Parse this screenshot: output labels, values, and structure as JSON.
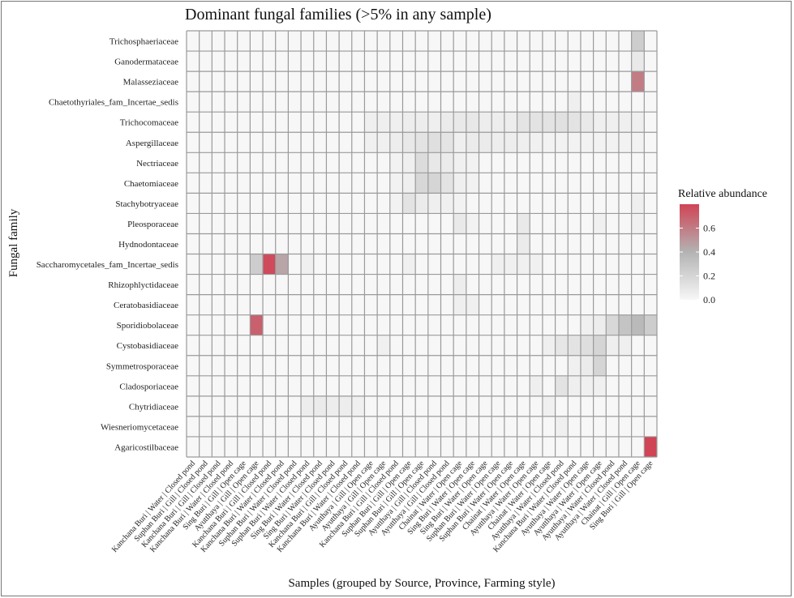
{
  "chart_data": {
    "type": "heatmap",
    "title": "Dominant fungal families (>5% in any sample)",
    "xlabel": "Samples (grouped by Source, Province, Farming style)",
    "ylabel": "Fungal family",
    "legend": {
      "title": "Relative abundance",
      "ticks": [
        "0.0",
        "0.2",
        "0.4",
        "0.6"
      ],
      "range": [
        0,
        0.8
      ],
      "colors": [
        "#f7f7f7",
        "#b3b3b3",
        "#d04455"
      ]
    },
    "x": [
      "Kanchana Buri | Water | Closed pond",
      "Suphan Buri | Gill | Closed pond",
      "Kanchana Buri | Gill | Closed pond",
      "Kanchana Buri | Water | Closed pond",
      "Sing Buri | Gill | Open cage",
      "Ayutthaya | Gill | Open cage",
      "Kanchana Buri | Gill | Closed pond",
      "Kanchana Buri | Water | Closed pond",
      "Suphan Buri | Water | Closed pond",
      "Suphan Buri | Water | Closed pond",
      "Sing Buri | Water | Closed pond",
      "Sing Buri | Water | Closed pond",
      "Kanchana Buri | Gill | Closed pond",
      "Kanchana Buri | Water | Closed pond",
      "Ayutthaya | Gill | Open cage",
      "Ayutthaya | Gill | Open cage",
      "Kanchana Buri | Gill | Closed pond",
      "Suphan Buri | Gill | Open cage",
      "Suphan Buri | Gill | Open cage",
      "Ayutthaya | Gill | Closed pond",
      "Ayutthaya | Gill | Closed pond",
      "Chainat | Water | Open cage",
      "Sing Buri | Water | Open cage",
      "Sing Buri | Water | Open cage",
      "Suphan Buri | Water | Open cage",
      "Suphan Buri | Water | Open cage",
      "Chainat | Water | Open cage",
      "Ayutthaya | Water | Open cage",
      "Chainat | Water | Open cage",
      "Ayutthaya | Water | Closed pond",
      "Kanchana Buri | Water | Closed pond",
      "Ayutthaya | Water | Open cage",
      "Ayutthaya | Water | Open cage",
      "Ayutthaya | Water | Closed pond",
      "Ayutthaya | Water | Closed pond",
      "Chainat | Gill | Open cage",
      "Sing Buri | Gill | Open cage"
    ],
    "y": [
      "Trichosphaeriaceae",
      "Ganodermataceae",
      "Malasseziaceae",
      "Chaetothyriales_fam_Incertae_sedis",
      "Trichocomaceae",
      "Aspergillaceae",
      "Nectriaceae",
      "Chaetomiaceae",
      "Stachybotryaceae",
      "Pleosporaceae",
      "Hydnodontaceae",
      "Saccharomycetales_fam_Incertae_sedis",
      "Rhizophlyctidaceae",
      "Ceratobasidiaceae",
      "Sporidiobolaceae",
      "Cystobasidiaceae",
      "Symmetrosporaceae",
      "Cladosporiaceae",
      "Chytridiaceae",
      "Wiesneriomycetaceae",
      "Agaricostilbaceae"
    ],
    "values": [
      [
        0,
        0,
        0,
        0,
        0,
        0,
        0,
        0,
        0,
        0,
        0,
        0,
        0,
        0,
        0,
        0,
        0,
        0,
        0,
        0,
        0,
        0,
        0,
        0,
        0,
        0,
        0,
        0,
        0,
        0,
        0,
        0,
        0,
        0,
        0,
        0.25,
        0
      ],
      [
        0,
        0,
        0,
        0,
        0,
        0,
        0,
        0,
        0,
        0,
        0,
        0,
        0,
        0,
        0,
        0,
        0,
        0,
        0,
        0,
        0,
        0,
        0,
        0,
        0,
        0,
        0,
        0,
        0,
        0,
        0,
        0,
        0,
        0,
        0,
        0.08,
        0
      ],
      [
        0,
        0,
        0,
        0,
        0,
        0,
        0,
        0,
        0,
        0,
        0,
        0,
        0,
        0,
        0,
        0,
        0,
        0,
        0,
        0,
        0,
        0,
        0,
        0,
        0,
        0,
        0,
        0,
        0,
        0,
        0,
        0,
        0,
        0,
        0,
        0.6,
        0
      ],
      [
        0,
        0,
        0,
        0,
        0,
        0,
        0,
        0,
        0,
        0,
        0,
        0,
        0,
        0,
        0,
        0,
        0,
        0,
        0,
        0,
        0,
        0,
        0,
        0,
        0,
        0,
        0,
        0,
        0,
        0,
        0.05,
        0,
        0,
        0,
        0,
        0,
        0
      ],
      [
        0,
        0,
        0,
        0,
        0,
        0,
        0,
        0,
        0,
        0,
        0,
        0,
        0,
        0,
        0.05,
        0.05,
        0.05,
        0.06,
        0.06,
        0.05,
        0.07,
        0.08,
        0.09,
        0.06,
        0.06,
        0.06,
        0.11,
        0.12,
        0.12,
        0.13,
        0.12,
        0.08,
        0.05,
        0.05,
        0.05,
        0.05,
        0
      ],
      [
        0,
        0,
        0,
        0,
        0,
        0,
        0,
        0,
        0,
        0,
        0,
        0,
        0,
        0,
        0.04,
        0.04,
        0.06,
        0.09,
        0.12,
        0.14,
        0.11,
        0.05,
        0.07,
        0.07,
        0.06,
        0.06,
        0.05,
        0.04,
        0.03,
        0.03,
        0.03,
        0.03,
        0.03,
        0.03,
        0.03,
        0.03,
        0
      ],
      [
        0,
        0,
        0,
        0,
        0,
        0,
        0,
        0,
        0,
        0,
        0,
        0,
        0,
        0,
        0,
        0,
        0.03,
        0.05,
        0.16,
        0.09,
        0.07,
        0.04,
        0.03,
        0,
        0,
        0,
        0,
        0,
        0,
        0,
        0,
        0,
        0,
        0,
        0,
        0,
        0
      ],
      [
        0,
        0,
        0,
        0,
        0,
        0,
        0,
        0,
        0,
        0,
        0,
        0,
        0,
        0,
        0,
        0,
        0.03,
        0.05,
        0.19,
        0.2,
        0.12,
        0.05,
        0.03,
        0,
        0,
        0,
        0,
        0,
        0,
        0,
        0,
        0,
        0,
        0,
        0,
        0,
        0
      ],
      [
        0,
        0,
        0,
        0,
        0,
        0,
        0,
        0,
        0,
        0,
        0,
        0,
        0,
        0,
        0,
        0,
        0.03,
        0.12,
        0.07,
        0.05,
        0.04,
        0.03,
        0,
        0,
        0,
        0,
        0,
        0,
        0,
        0,
        0,
        0,
        0,
        0,
        0,
        0.05,
        0
      ],
      [
        0,
        0,
        0,
        0,
        0,
        0,
        0,
        0,
        0,
        0,
        0,
        0,
        0,
        0,
        0,
        0,
        0,
        0,
        0,
        0,
        0,
        0.08,
        0.03,
        0,
        0,
        0,
        0.08,
        0,
        0,
        0,
        0,
        0,
        0.04,
        0,
        0,
        0.04,
        0
      ],
      [
        0,
        0,
        0,
        0,
        0,
        0,
        0,
        0,
        0,
        0,
        0,
        0,
        0,
        0,
        0,
        0,
        0,
        0,
        0,
        0,
        0,
        0,
        0,
        0,
        0,
        0,
        0.07,
        0,
        0,
        0,
        0,
        0,
        0,
        0,
        0,
        0,
        0
      ],
      [
        0,
        0,
        0,
        0,
        0,
        0.25,
        0.78,
        0.45,
        0,
        0.04,
        0,
        0,
        0,
        0,
        0,
        0,
        0,
        0.04,
        0,
        0,
        0,
        0,
        0,
        0,
        0.05,
        0.04,
        0.04,
        0.04,
        0,
        0,
        0,
        0,
        0,
        0,
        0,
        0,
        0
      ],
      [
        0,
        0,
        0,
        0,
        0,
        0,
        0,
        0,
        0,
        0,
        0,
        0,
        0,
        0,
        0,
        0,
        0,
        0,
        0,
        0,
        0,
        0.06,
        0,
        0,
        0,
        0,
        0,
        0,
        0,
        0,
        0,
        0,
        0,
        0,
        0,
        0,
        0
      ],
      [
        0,
        0,
        0,
        0,
        0,
        0,
        0,
        0,
        0,
        0,
        0,
        0,
        0,
        0,
        0,
        0,
        0,
        0,
        0,
        0,
        0,
        0.05,
        0.04,
        0,
        0,
        0,
        0,
        0,
        0,
        0,
        0,
        0,
        0,
        0,
        0,
        0,
        0
      ],
      [
        0,
        0,
        0,
        0,
        0,
        0.7,
        0,
        0,
        0,
        0,
        0,
        0,
        0,
        0,
        0,
        0,
        0,
        0,
        0,
        0,
        0,
        0,
        0,
        0,
        0,
        0,
        0,
        0,
        0,
        0,
        0,
        0.04,
        0.06,
        0.18,
        0.3,
        0.36,
        0.25
      ],
      [
        0,
        0,
        0,
        0,
        0,
        0,
        0,
        0,
        0,
        0,
        0,
        0,
        0,
        0,
        0,
        0.04,
        0,
        0,
        0,
        0,
        0,
        0,
        0,
        0,
        0,
        0,
        0,
        0,
        0.05,
        0.1,
        0.12,
        0.15,
        0.2,
        0.05,
        0.05,
        0,
        0
      ],
      [
        0,
        0,
        0,
        0,
        0,
        0,
        0,
        0,
        0,
        0,
        0,
        0,
        0,
        0,
        0,
        0,
        0,
        0,
        0,
        0,
        0,
        0,
        0,
        0,
        0,
        0,
        0,
        0,
        0,
        0,
        0.04,
        0.07,
        0.2,
        0,
        0,
        0,
        0
      ],
      [
        0,
        0,
        0,
        0,
        0,
        0,
        0,
        0,
        0,
        0,
        0,
        0,
        0,
        0,
        0,
        0,
        0,
        0,
        0,
        0,
        0,
        0,
        0,
        0,
        0,
        0,
        0,
        0.05,
        0,
        0.12,
        0.05,
        0.04,
        0.04,
        0,
        0,
        0,
        0
      ],
      [
        0,
        0,
        0,
        0,
        0,
        0,
        0,
        0,
        0,
        0.06,
        0.07,
        0.06,
        0.06,
        0.04,
        0,
        0,
        0,
        0,
        0,
        0,
        0,
        0,
        0,
        0,
        0,
        0,
        0,
        0,
        0.04,
        0,
        0,
        0,
        0,
        0,
        0,
        0,
        0
      ],
      [
        0,
        0,
        0,
        0,
        0,
        0,
        0,
        0,
        0,
        0,
        0,
        0,
        0,
        0,
        0,
        0,
        0,
        0,
        0,
        0,
        0,
        0,
        0,
        0,
        0,
        0,
        0,
        0,
        0,
        0.04,
        0,
        0,
        0,
        0,
        0,
        0,
        0
      ],
      [
        0,
        0,
        0,
        0,
        0,
        0,
        0,
        0,
        0,
        0,
        0,
        0,
        0,
        0,
        0,
        0,
        0,
        0,
        0,
        0,
        0,
        0,
        0,
        0,
        0,
        0,
        0,
        0,
        0,
        0,
        0,
        0,
        0,
        0,
        0,
        0,
        0.8
      ]
    ]
  }
}
